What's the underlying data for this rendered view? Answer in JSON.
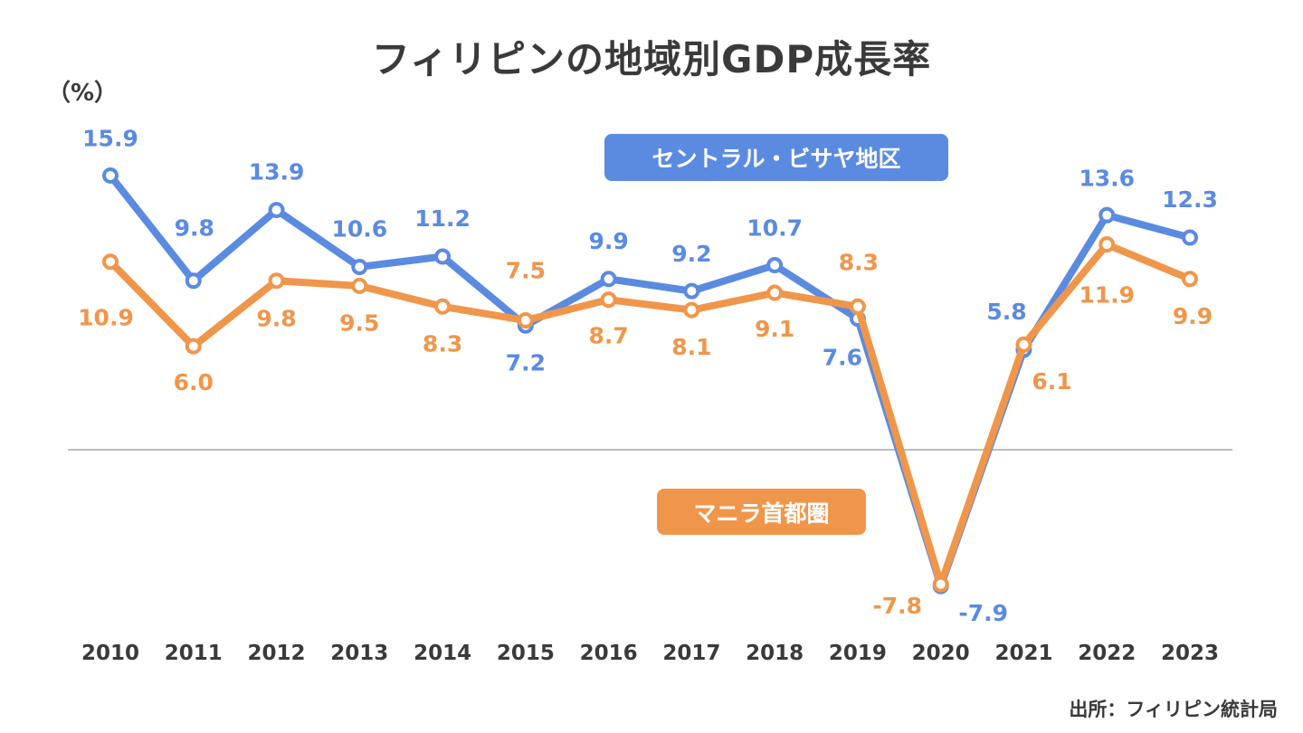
{
  "chart_data": {
    "type": "line",
    "title": "フィリピンの地域別GDP成長率",
    "ylabel": "（%）",
    "source": "出所：フィリピン統計局",
    "x": [
      "2010",
      "2011",
      "2012",
      "2013",
      "2014",
      "2015",
      "2016",
      "2017",
      "2018",
      "2019",
      "2020",
      "2021",
      "2022",
      "2023"
    ],
    "ylim": [
      -10,
      20
    ],
    "grid": false,
    "legend_placement": "inline",
    "series": [
      {
        "name": "セントラル・ビサヤ地区",
        "color": "#5b8be0",
        "values": [
          15.9,
          9.8,
          13.9,
          10.6,
          11.2,
          7.2,
          9.9,
          9.2,
          10.7,
          7.6,
          -7.9,
          5.8,
          13.6,
          12.3
        ]
      },
      {
        "name": "マニラ首都圏",
        "color": "#f0964b",
        "values": [
          10.9,
          6.0,
          9.8,
          9.5,
          8.3,
          7.5,
          8.7,
          8.1,
          9.1,
          8.3,
          -7.8,
          6.1,
          11.9,
          9.9
        ]
      }
    ]
  }
}
